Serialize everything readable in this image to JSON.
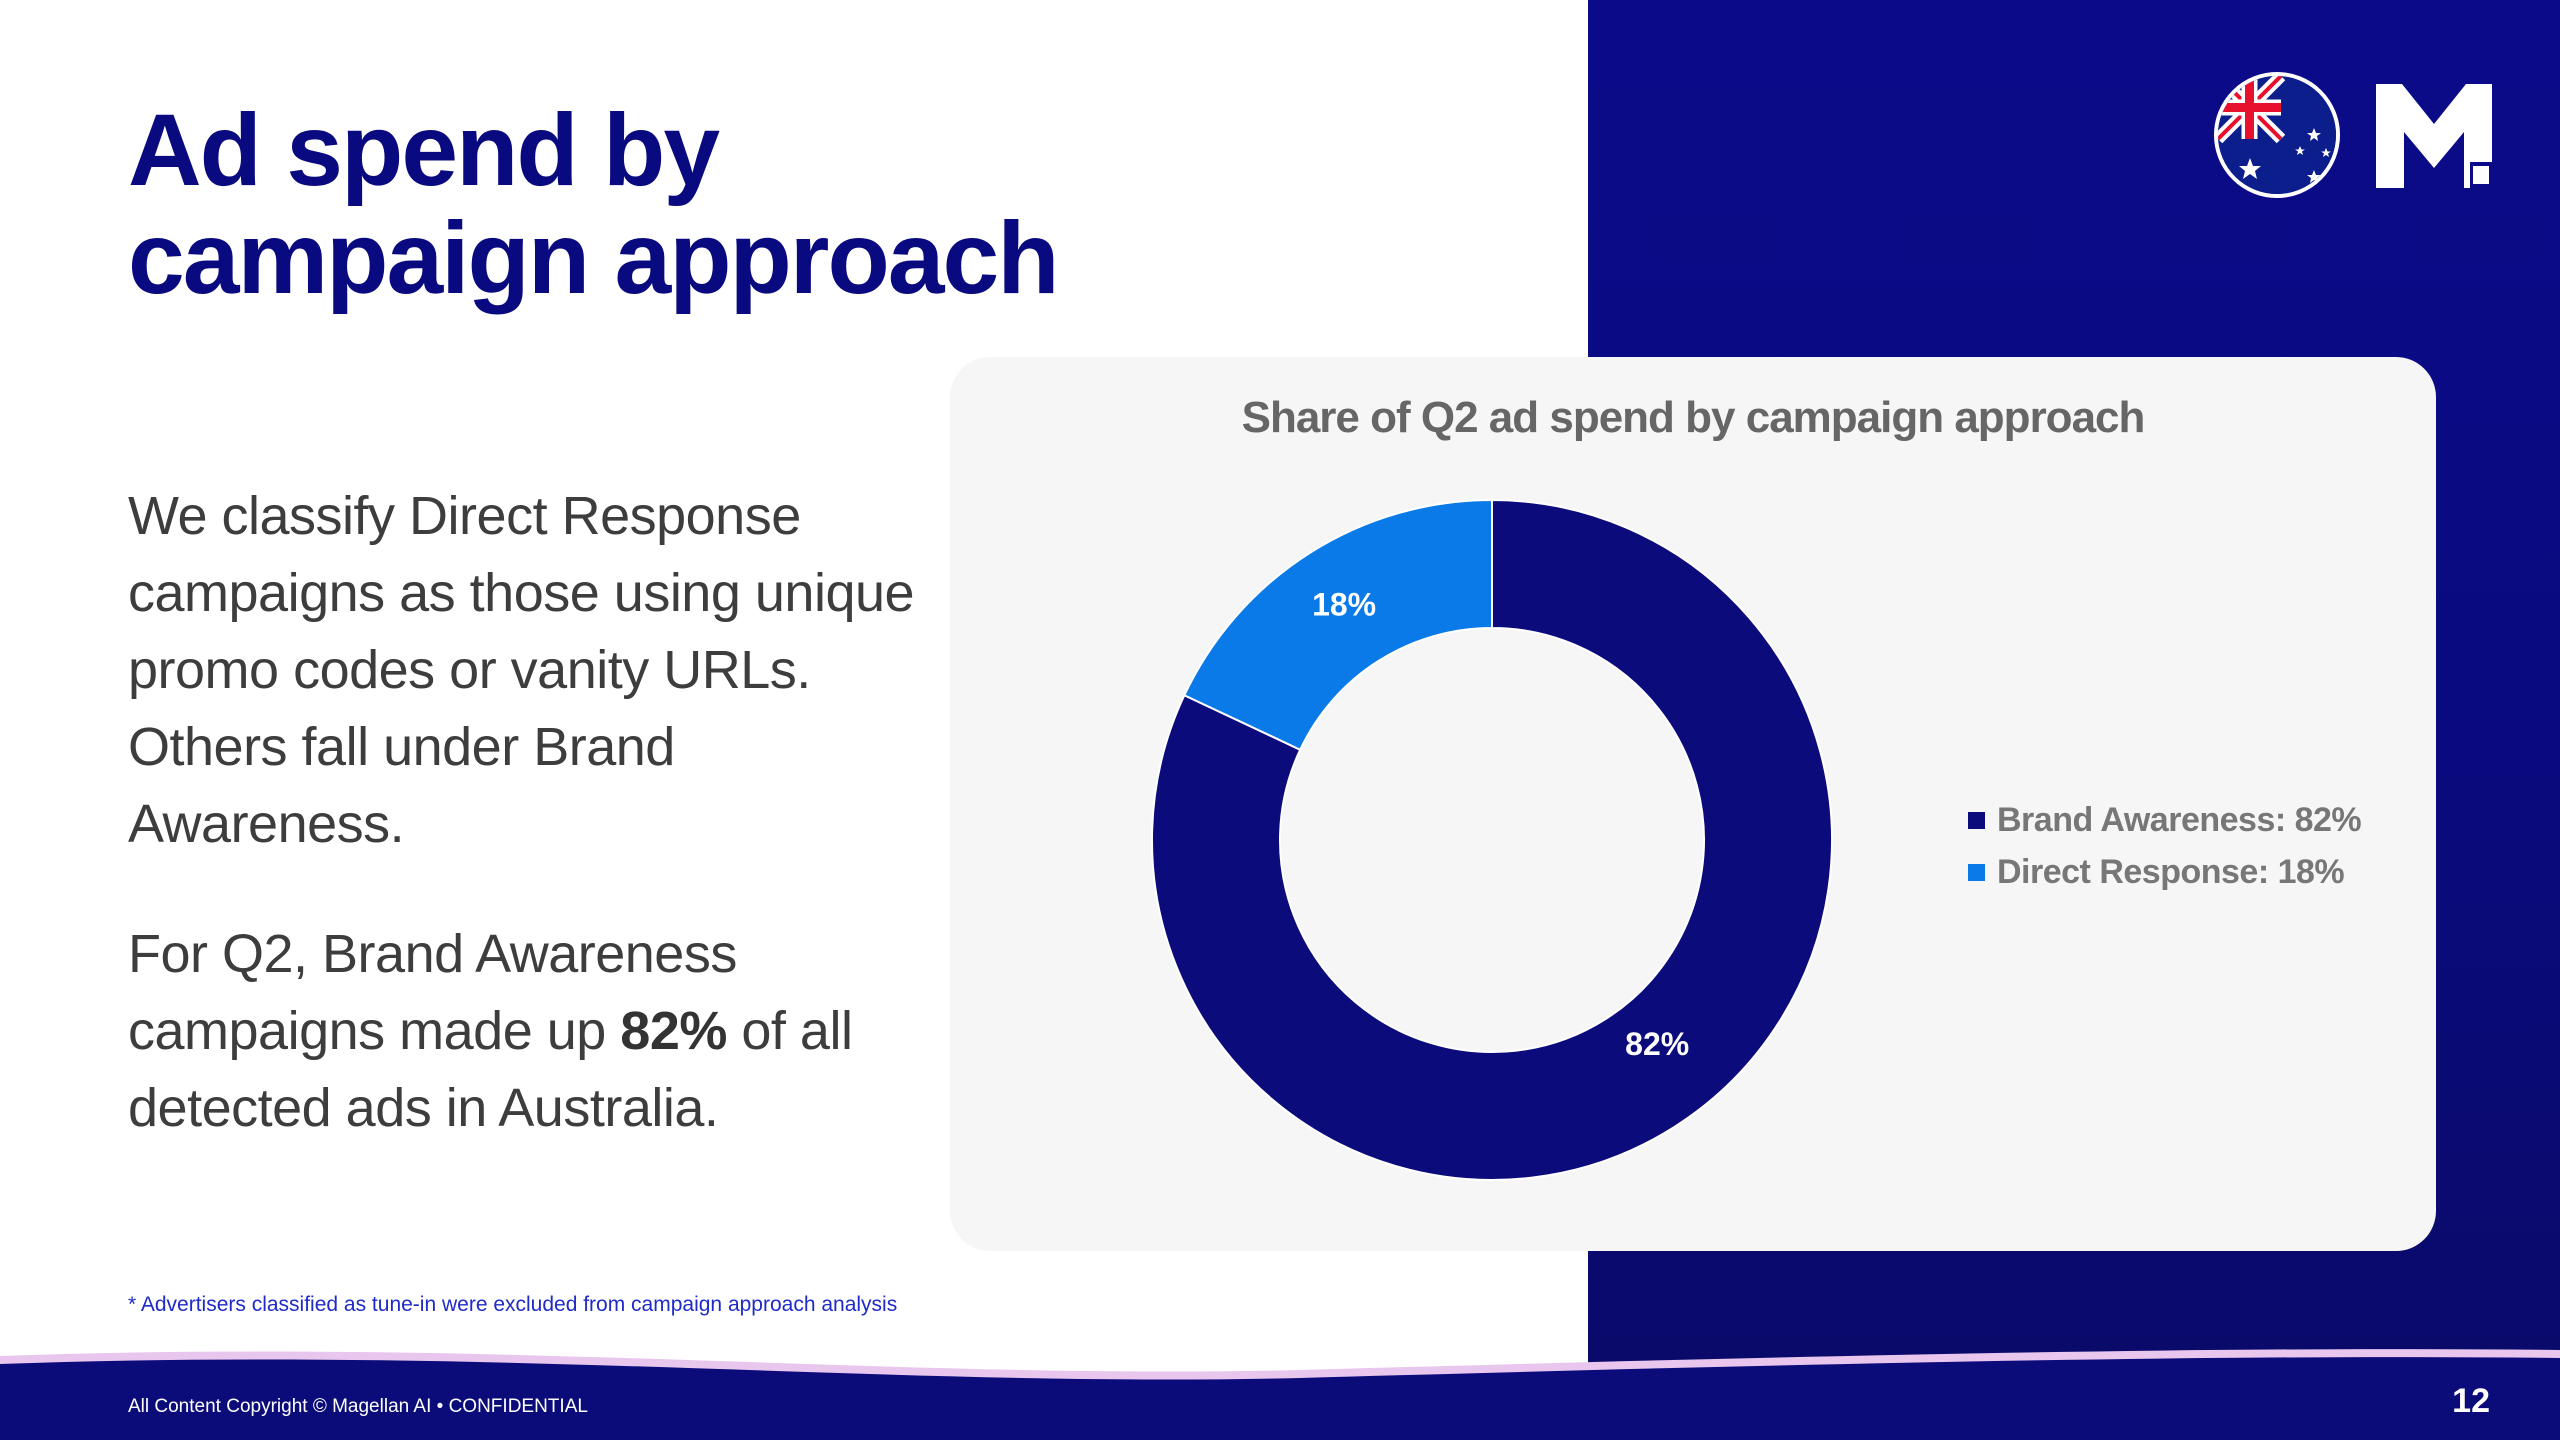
{
  "slide": {
    "title_line1": "Ad spend by",
    "title_line2": "campaign approach",
    "para1": "We classify Direct Response campaigns as those using unique promo codes or vanity URLs. Others fall under Brand Awareness.",
    "para2_before": "For Q2, Brand Awareness campaigns made up ",
    "para2_bold": "82%",
    "para2_after": " of all detected ads in Australia.",
    "footnote": "* Advertisers classified as tune-in were excluded from campaign approach analysis",
    "copyright": "All Content Copyright © Magellan AI • CONFIDENTIAL",
    "page_number": "12"
  },
  "icons": {
    "flag": "australia-flag-icon",
    "logo": "magellan-logo-icon"
  },
  "colors": {
    "brand_navy": "#0a0a80",
    "direct_response": "#0a7ae8",
    "card_bg": "#f6f6f7"
  },
  "chart_data": {
    "type": "pie",
    "donut": true,
    "title": "Share of Q2 ad spend by campaign approach",
    "categories": [
      "Brand Awareness",
      "Direct Response"
    ],
    "values": [
      82,
      18
    ],
    "value_labels": [
      "82%",
      "18%"
    ],
    "legend_labels": [
      "Brand Awareness: 82%",
      "Direct Response: 18%"
    ],
    "colors": [
      "#0b0b7c",
      "#0a7ae8"
    ],
    "legend_position": "right"
  }
}
